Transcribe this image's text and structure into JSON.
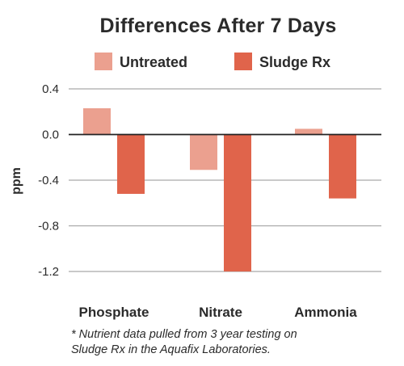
{
  "chart_data": {
    "type": "bar",
    "title": "Differences After 7 Days",
    "xlabel": "",
    "ylabel": "ppm",
    "categories": [
      "Phosphate",
      "Nitrate",
      "Ammonia"
    ],
    "series": [
      {
        "name": "Untreated",
        "color": "#eba08f",
        "values": [
          0.23,
          -0.31,
          0.05
        ]
      },
      {
        "name": "Sludge Rx",
        "color": "#e0644b",
        "values": [
          -0.52,
          -1.2,
          -0.56
        ]
      }
    ],
    "ylim": [
      -1.2,
      0.4
    ],
    "yticks": [
      0.4,
      0.0,
      -0.4,
      -0.8,
      -1.2
    ],
    "ytick_labels": [
      "0.4",
      "0.0",
      "-0.4",
      "-0.8",
      "-1.2"
    ],
    "grid": true,
    "legend_position": "top",
    "zero_line_color": "#222222",
    "gridline_color": "#a9a9a9"
  },
  "footnote": {
    "line1": "* Nutrient data pulled from 3 year testing on",
    "line2": "Sludge Rx in the Aquafix Laboratories."
  }
}
